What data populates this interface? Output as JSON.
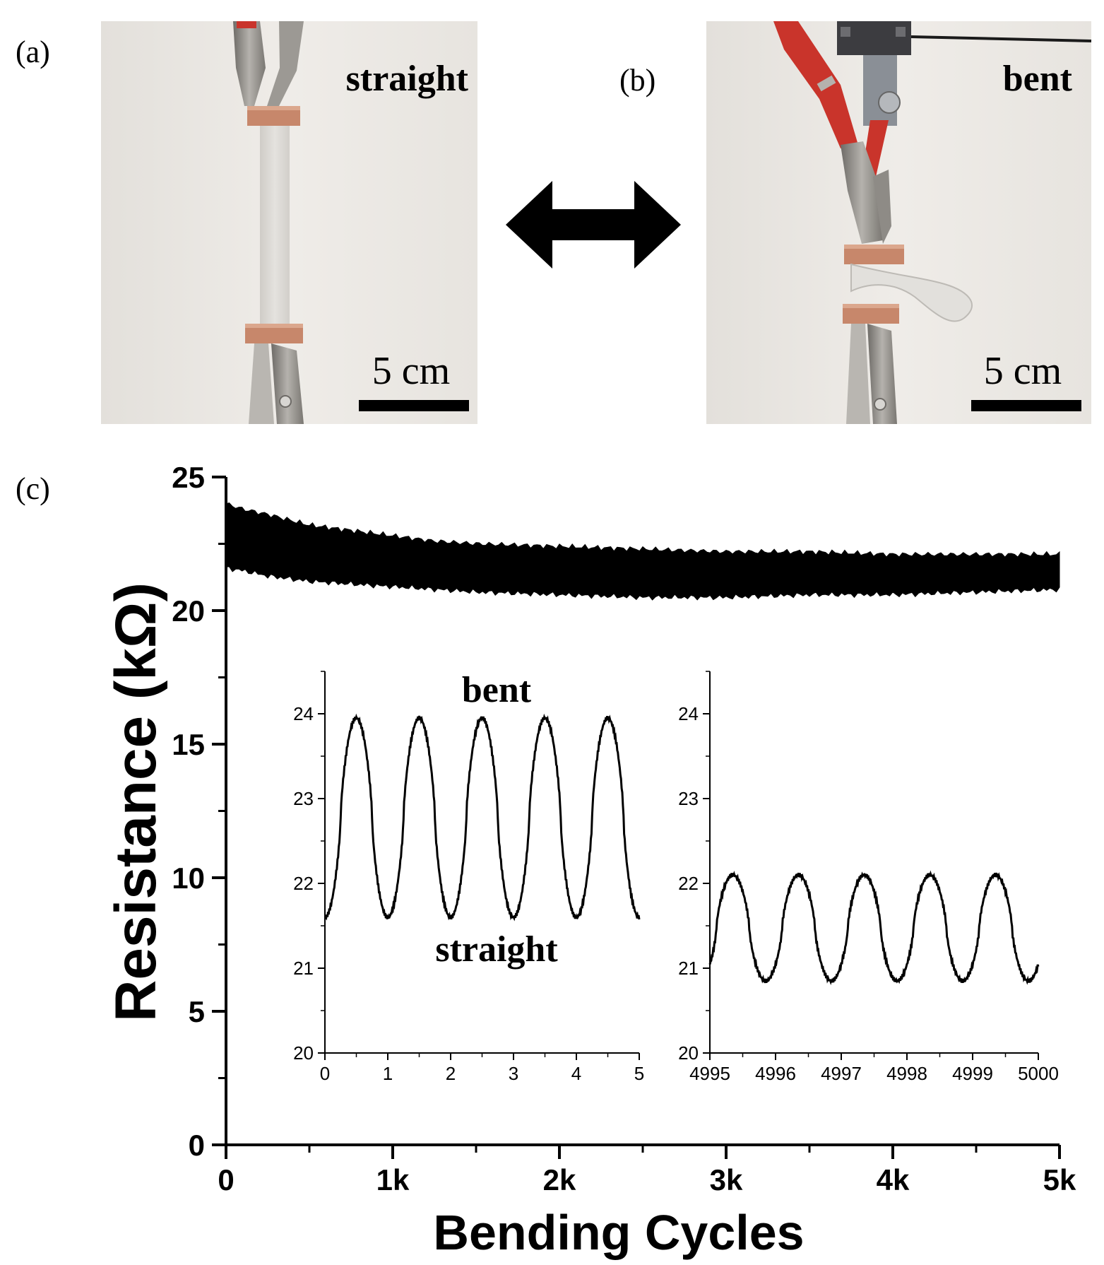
{
  "panels": {
    "a": {
      "label": "(a)",
      "state": "straight",
      "scale_bar": "5 cm"
    },
    "b": {
      "label": "(b)",
      "state": "bent",
      "scale_bar": "5 cm"
    },
    "c": {
      "label": "(c)"
    }
  },
  "chart_data": [
    {
      "type": "area",
      "xlabel": "Bending Cycles",
      "ylabel": "Resistance (kΩ)",
      "xlim": [
        0,
        5000
      ],
      "ylim": [
        0,
        25
      ],
      "xticks": [
        0,
        1000,
        2000,
        3000,
        4000,
        5000
      ],
      "xtick_labels": [
        "0",
        "1k",
        "2k",
        "3k",
        "4k",
        "5k"
      ],
      "yticks": [
        0,
        5,
        10,
        15,
        20,
        25
      ],
      "ytick_labels": [
        "0",
        "5",
        "10",
        "15",
        "20",
        "25"
      ],
      "series": [
        {
          "x": [
            0,
            100,
            250,
            500,
            750,
            1000,
            1250,
            1500,
            2000,
            2500,
            3000,
            3500,
            4000,
            4500,
            5000
          ],
          "upper": [
            24.0,
            23.8,
            23.6,
            23.2,
            23.0,
            22.8,
            22.6,
            22.5,
            22.4,
            22.3,
            22.2,
            22.2,
            22.1,
            22.1,
            22.1
          ],
          "lower": [
            21.6,
            21.5,
            21.3,
            21.1,
            21.0,
            20.9,
            20.8,
            20.7,
            20.6,
            20.5,
            20.5,
            20.6,
            20.6,
            20.7,
            20.8
          ]
        }
      ]
    },
    {
      "type": "line",
      "inset": true,
      "xlim": [
        0,
        5
      ],
      "ylim": [
        20,
        24.5
      ],
      "xticks": [
        0,
        1,
        2,
        3,
        4,
        5
      ],
      "yticks": [
        20,
        21,
        22,
        23,
        24
      ],
      "annotations": [
        "bent",
        "straight"
      ],
      "series": [
        {
          "period": 1,
          "min": 21.6,
          "max": 23.95,
          "phase_start": -0.5
        }
      ]
    },
    {
      "type": "line",
      "inset": true,
      "xlim": [
        4995,
        5000
      ],
      "ylim": [
        20,
        24.5
      ],
      "xticks": [
        4995,
        4996,
        4997,
        4998,
        4999,
        5000
      ],
      "yticks": [
        20,
        21,
        22,
        23,
        24
      ],
      "series": [
        {
          "period": 1,
          "min": 20.85,
          "max": 22.1,
          "phase_start": -0.35
        }
      ]
    }
  ],
  "colors": {
    "ink": "#000000",
    "photo_bg": "#e9e6e1",
    "clip_red": "#c9342b",
    "copper": "#c7876b",
    "metal": "#8e8b86"
  }
}
